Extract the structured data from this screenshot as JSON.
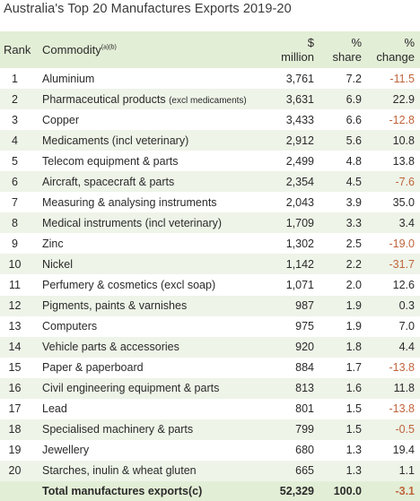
{
  "title": "Australia's Top 20 Manufactures Exports 2019-20",
  "header": {
    "rank": "Rank",
    "commodity": "Commodity",
    "commodity_sup": "(a)(b)",
    "million_top": "$",
    "million_bottom": "million",
    "share_top": "%",
    "share_bottom": "share",
    "change_top": "%",
    "change_bottom": "change"
  },
  "rows": [
    {
      "rank": "1",
      "commodity": "Aluminium",
      "note": "",
      "million": "3,761",
      "share": "7.2",
      "change": "-11.5",
      "negative": true
    },
    {
      "rank": "2",
      "commodity": "Pharmaceutical products",
      "note": "(excl medicaments)",
      "million": "3,631",
      "share": "6.9",
      "change": "22.9",
      "negative": false
    },
    {
      "rank": "3",
      "commodity": "Copper",
      "note": "",
      "million": "3,433",
      "share": "6.6",
      "change": "-12.8",
      "negative": true
    },
    {
      "rank": "4",
      "commodity": "Medicaments (incl veterinary)",
      "note": "",
      "million": "2,912",
      "share": "5.6",
      "change": "10.8",
      "negative": false
    },
    {
      "rank": "5",
      "commodity": "Telecom equipment & parts",
      "note": "",
      "million": "2,499",
      "share": "4.8",
      "change": "13.8",
      "negative": false
    },
    {
      "rank": "6",
      "commodity": "Aircraft, spacecraft & parts",
      "note": "",
      "million": "2,354",
      "share": "4.5",
      "change": "-7.6",
      "negative": true
    },
    {
      "rank": "7",
      "commodity": "Measuring & analysing instruments",
      "note": "",
      "million": "2,043",
      "share": "3.9",
      "change": "35.0",
      "negative": false
    },
    {
      "rank": "8",
      "commodity": "Medical instruments (incl veterinary)",
      "note": "",
      "million": "1,709",
      "share": "3.3",
      "change": "3.4",
      "negative": false
    },
    {
      "rank": "9",
      "commodity": "Zinc",
      "note": "",
      "million": "1,302",
      "share": "2.5",
      "change": "-19.0",
      "negative": true
    },
    {
      "rank": "10",
      "commodity": "Nickel",
      "note": "",
      "million": "1,142",
      "share": "2.2",
      "change": "-31.7",
      "negative": true
    },
    {
      "rank": "11",
      "commodity": "Perfumery & cosmetics (excl soap)",
      "note": "",
      "million": "1,071",
      "share": "2.0",
      "change": "12.6",
      "negative": false
    },
    {
      "rank": "12",
      "commodity": "Pigments, paints & varnishes",
      "note": "",
      "million": "987",
      "share": "1.9",
      "change": "0.3",
      "negative": false
    },
    {
      "rank": "13",
      "commodity": "Computers",
      "note": "",
      "million": "975",
      "share": "1.9",
      "change": "7.0",
      "negative": false
    },
    {
      "rank": "14",
      "commodity": "Vehicle parts & accessories",
      "note": "",
      "million": "920",
      "share": "1.8",
      "change": "4.4",
      "negative": false
    },
    {
      "rank": "15",
      "commodity": "Paper & paperboard",
      "note": "",
      "million": "884",
      "share": "1.7",
      "change": "-13.8",
      "negative": true
    },
    {
      "rank": "16",
      "commodity": "Civil engineering equipment & parts",
      "note": "",
      "million": "813",
      "share": "1.6",
      "change": "11.8",
      "negative": false
    },
    {
      "rank": "17",
      "commodity": "Lead",
      "note": "",
      "million": "801",
      "share": "1.5",
      "change": "-13.8",
      "negative": true
    },
    {
      "rank": "18",
      "commodity": "Specialised machinery & parts",
      "note": "",
      "million": "799",
      "share": "1.5",
      "change": "-0.5",
      "negative": true
    },
    {
      "rank": "19",
      "commodity": "Jewellery",
      "note": "",
      "million": "680",
      "share": "1.3",
      "change": "19.4",
      "negative": false
    },
    {
      "rank": "20",
      "commodity": "Starches, inulin & wheat gluten",
      "note": "",
      "million": "665",
      "share": "1.3",
      "change": "1.1",
      "negative": false
    }
  ],
  "total": {
    "label": "Total manufactures exports(c)",
    "million": "52,329",
    "share": "100.0",
    "change": "-3.1"
  },
  "colors": {
    "header_bg": "#e3eed6",
    "row_alt_bg": "#eef4e8",
    "negative_text": "#c0643c"
  }
}
